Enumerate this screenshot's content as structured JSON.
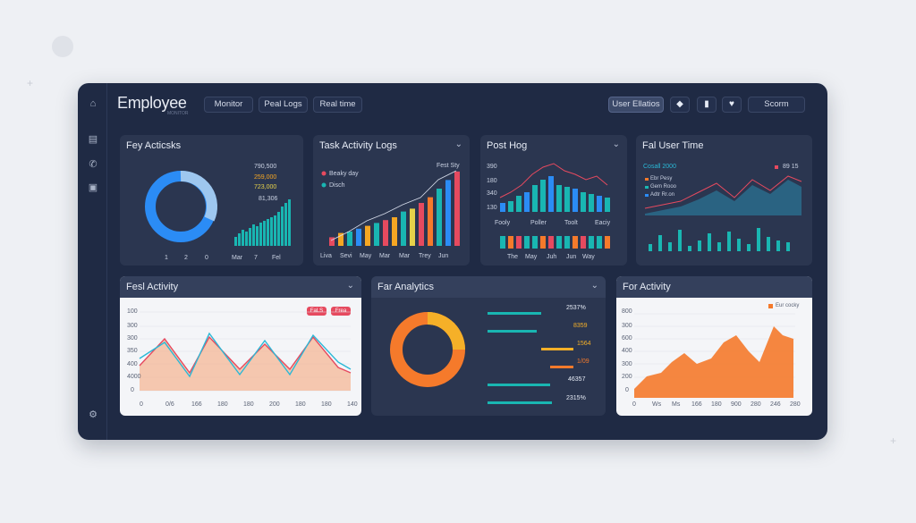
{
  "app": {
    "title": "Employee",
    "subtitle": "MONITOR"
  },
  "toolbar": {
    "nav": [
      "Monitor",
      "Peal Logs",
      "Real time"
    ],
    "user": "User Ellatios",
    "search": "Scorm"
  },
  "cards": {
    "c1": {
      "title": "Fey Acticsks",
      "legend": [
        "790,500",
        "259,000",
        "723,000",
        "81,306"
      ],
      "legend_colors": [
        "#2b8cf5",
        "#f5a623",
        "#e6d14a",
        "#f5a623"
      ],
      "axis": [
        "1",
        "2",
        "0",
        "Mar",
        "7",
        "Fel"
      ]
    },
    "c2": {
      "title": "Task Activity Logs",
      "legend": [
        "Beaky day",
        "Disch"
      ],
      "corner": "Fest Sty",
      "axis": [
        "Liva",
        "Sevi",
        "May",
        "Mar",
        "Mar",
        "Trey",
        "Jun"
      ]
    },
    "c3": {
      "title": "Post Hog",
      "yaxis": [
        "390",
        "180",
        "340",
        "130"
      ],
      "labels": [
        "Fooly",
        "Poller",
        "Toolt",
        "Eaciy"
      ],
      "axis": [
        "The",
        "May",
        "Juh",
        "Jun",
        "Way"
      ]
    },
    "c4": {
      "title": "Fal User Time",
      "sub": "Cosall 2000",
      "corner": "89 15",
      "legend": [
        "Ebr Pesy",
        "Gem Rooo",
        "Adtr Rr.on"
      ]
    },
    "c5": {
      "title": "Fesl Activity",
      "pills": [
        "FaLS",
        "Frea"
      ],
      "yaxis": [
        "100",
        "300",
        "300",
        "350",
        "400",
        "4000",
        "0"
      ],
      "axis": [
        "0",
        "0/6",
        "166",
        "180",
        "180",
        "200",
        "180",
        "180",
        "140"
      ]
    },
    "c6": {
      "title": "Far Analytics",
      "values": [
        "2537%",
        "8359",
        "1564",
        "1/09",
        "46357",
        "2315%"
      ]
    },
    "c7": {
      "title": "For Activity",
      "legend": "Eur cocky",
      "yaxis": [
        "800",
        "300",
        "600",
        "400",
        "300",
        "200",
        "0"
      ],
      "axis": [
        "0",
        "Ws",
        "Ms",
        "166",
        "180",
        "900",
        "280",
        "246",
        "280"
      ]
    }
  },
  "colors": {
    "panel": "#1f2a44",
    "card": "#2b3650",
    "accent_blue": "#2b8cf5",
    "teal": "#19b6b2",
    "orange": "#f57a2b",
    "red": "#e64a5f"
  },
  "chart_data": [
    {
      "type": "pie",
      "title": "Fey Acticsks",
      "values": [
        100
      ],
      "note": "donut"
    },
    {
      "type": "bar",
      "title": "Task Activity Logs",
      "values": [
        6,
        9,
        10,
        12,
        14,
        16,
        18,
        20,
        24,
        26,
        30,
        34,
        40,
        46,
        52
      ]
    },
    {
      "type": "bar",
      "title": "Post Hog",
      "values": [
        10,
        12,
        18,
        22,
        30,
        36,
        40,
        30,
        28,
        26,
        22,
        20,
        18,
        16
      ]
    },
    {
      "type": "area",
      "title": "For Activity",
      "values": [
        3,
        9,
        10,
        15,
        30,
        28,
        20,
        23,
        36,
        30,
        18,
        40,
        52,
        48,
        30,
        46
      ]
    }
  ]
}
